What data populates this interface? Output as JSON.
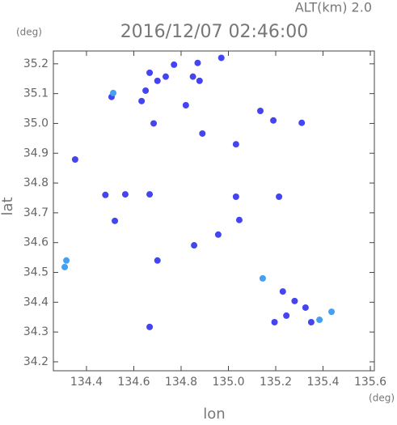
{
  "chart_data": {
    "type": "scatter",
    "title": "2016/12/07 02:46:00",
    "annotation": "ALT(km) 2.0",
    "y_unit": "(deg)",
    "x_unit": "(deg)",
    "xlabel": "lon",
    "ylabel": "lat",
    "xlim": [
      134.26,
      135.617
    ],
    "ylim": [
      34.17,
      35.243
    ],
    "xticks": [
      134.4,
      134.6,
      134.8,
      {
        "value": 135,
        "label": "135.0"
      },
      135.2,
      135.4,
      135.6
    ],
    "yticks": [
      34.2,
      34.3,
      34.4,
      34.5,
      34.6,
      34.7,
      34.8,
      34.9,
      {
        "value": 35,
        "label": "35.0"
      },
      35.1,
      35.2
    ],
    "x": [
      134.667,
      134.7,
      134.735,
      134.65,
      134.633,
      134.77,
      134.87,
      134.85,
      134.878,
      134.97,
      134.506,
      134.513,
      134.82,
      135.135,
      135.19,
      135.31,
      134.684,
      134.352,
      134.48,
      134.564,
      134.667,
      135.032,
      135.214,
      134.52,
      134.855,
      134.957,
      135.046,
      134.315,
      134.308,
      134.7,
      135.145,
      135.23,
      135.28,
      135.326,
      135.245,
      135.195,
      135.385,
      135.436,
      135.35,
      134.667,
      135.032,
      134.89
    ],
    "y": [
      35.17,
      35.143,
      35.157,
      35.11,
      35.075,
      35.197,
      35.203,
      35.157,
      35.143,
      35.22,
      35.089,
      35.102,
      35.061,
      35.042,
      35.01,
      35.002,
      35.0,
      34.879,
      34.76,
      34.762,
      34.762,
      34.754,
      34.754,
      34.673,
      34.591,
      34.627,
      34.676,
      34.54,
      34.518,
      34.54,
      34.48,
      34.436,
      34.404,
      34.382,
      34.355,
      34.333,
      34.341,
      34.368,
      34.333,
      34.317,
      34.93,
      34.966
    ],
    "colors": [
      "#4444f0",
      "#4444f0",
      "#4444f0",
      "#4444f0",
      "#4444f0",
      "#4444f0",
      "#4444f0",
      "#4444f0",
      "#4444f0",
      "#4444f0",
      "#4444f0",
      "#44a0f0",
      "#4444f0",
      "#4444f0",
      "#4444f0",
      "#4444f0",
      "#4444f0",
      "#4444f0",
      "#4444f0",
      "#4444f0",
      "#4444f0",
      "#4444f0",
      "#4444f0",
      "#4444f0",
      "#4444f0",
      "#4444f0",
      "#4444f0",
      "#44a0f0",
      "#44a0f0",
      "#4444f0",
      "#44a0f0",
      "#4444f0",
      "#4444f0",
      "#4444f0",
      "#4444f0",
      "#4444f0",
      "#44a0f0",
      "#44a0f0",
      "#4444f0",
      "#4444f0",
      "#4444f0",
      "#4444f0"
    ]
  }
}
